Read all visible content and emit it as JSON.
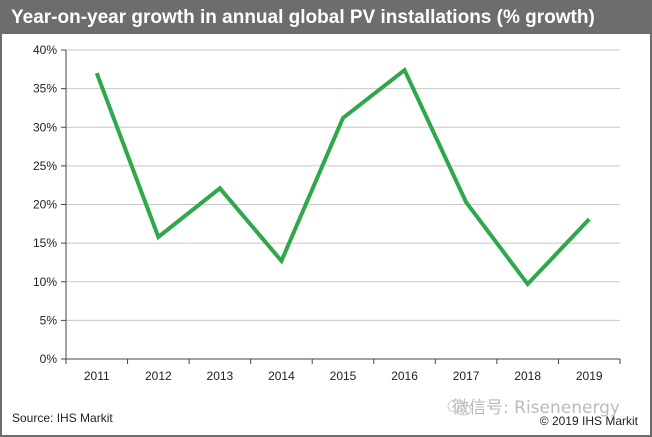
{
  "chart_data": {
    "type": "line",
    "title": "Year-on-year growth in annual global PV installations (% growth)",
    "categories": [
      "2011",
      "2012",
      "2013",
      "2014",
      "2015",
      "2016",
      "2017",
      "2018",
      "2019"
    ],
    "values": [
      37.0,
      15.8,
      22.1,
      12.7,
      31.2,
      37.4,
      20.3,
      9.7,
      18.1
    ],
    "ylim": [
      0,
      40
    ],
    "yticks": [
      0,
      5,
      10,
      15,
      20,
      25,
      30,
      35,
      40
    ],
    "ytick_labels": [
      "0%",
      "5%",
      "10%",
      "15%",
      "20%",
      "25%",
      "30%",
      "35%",
      "40%"
    ],
    "grid": true,
    "xlabel": "",
    "ylabel": "",
    "line_color": "#2ea84a",
    "grid_color": "#c8c8c8"
  },
  "footer": {
    "source": "Source: IHS Markit",
    "copyright": "© 2019 IHS Markit"
  },
  "watermark": "微信号: Risenenergy",
  "colors": {
    "header_bg": "#6d6d6d",
    "frame": "#6d6d6d"
  }
}
